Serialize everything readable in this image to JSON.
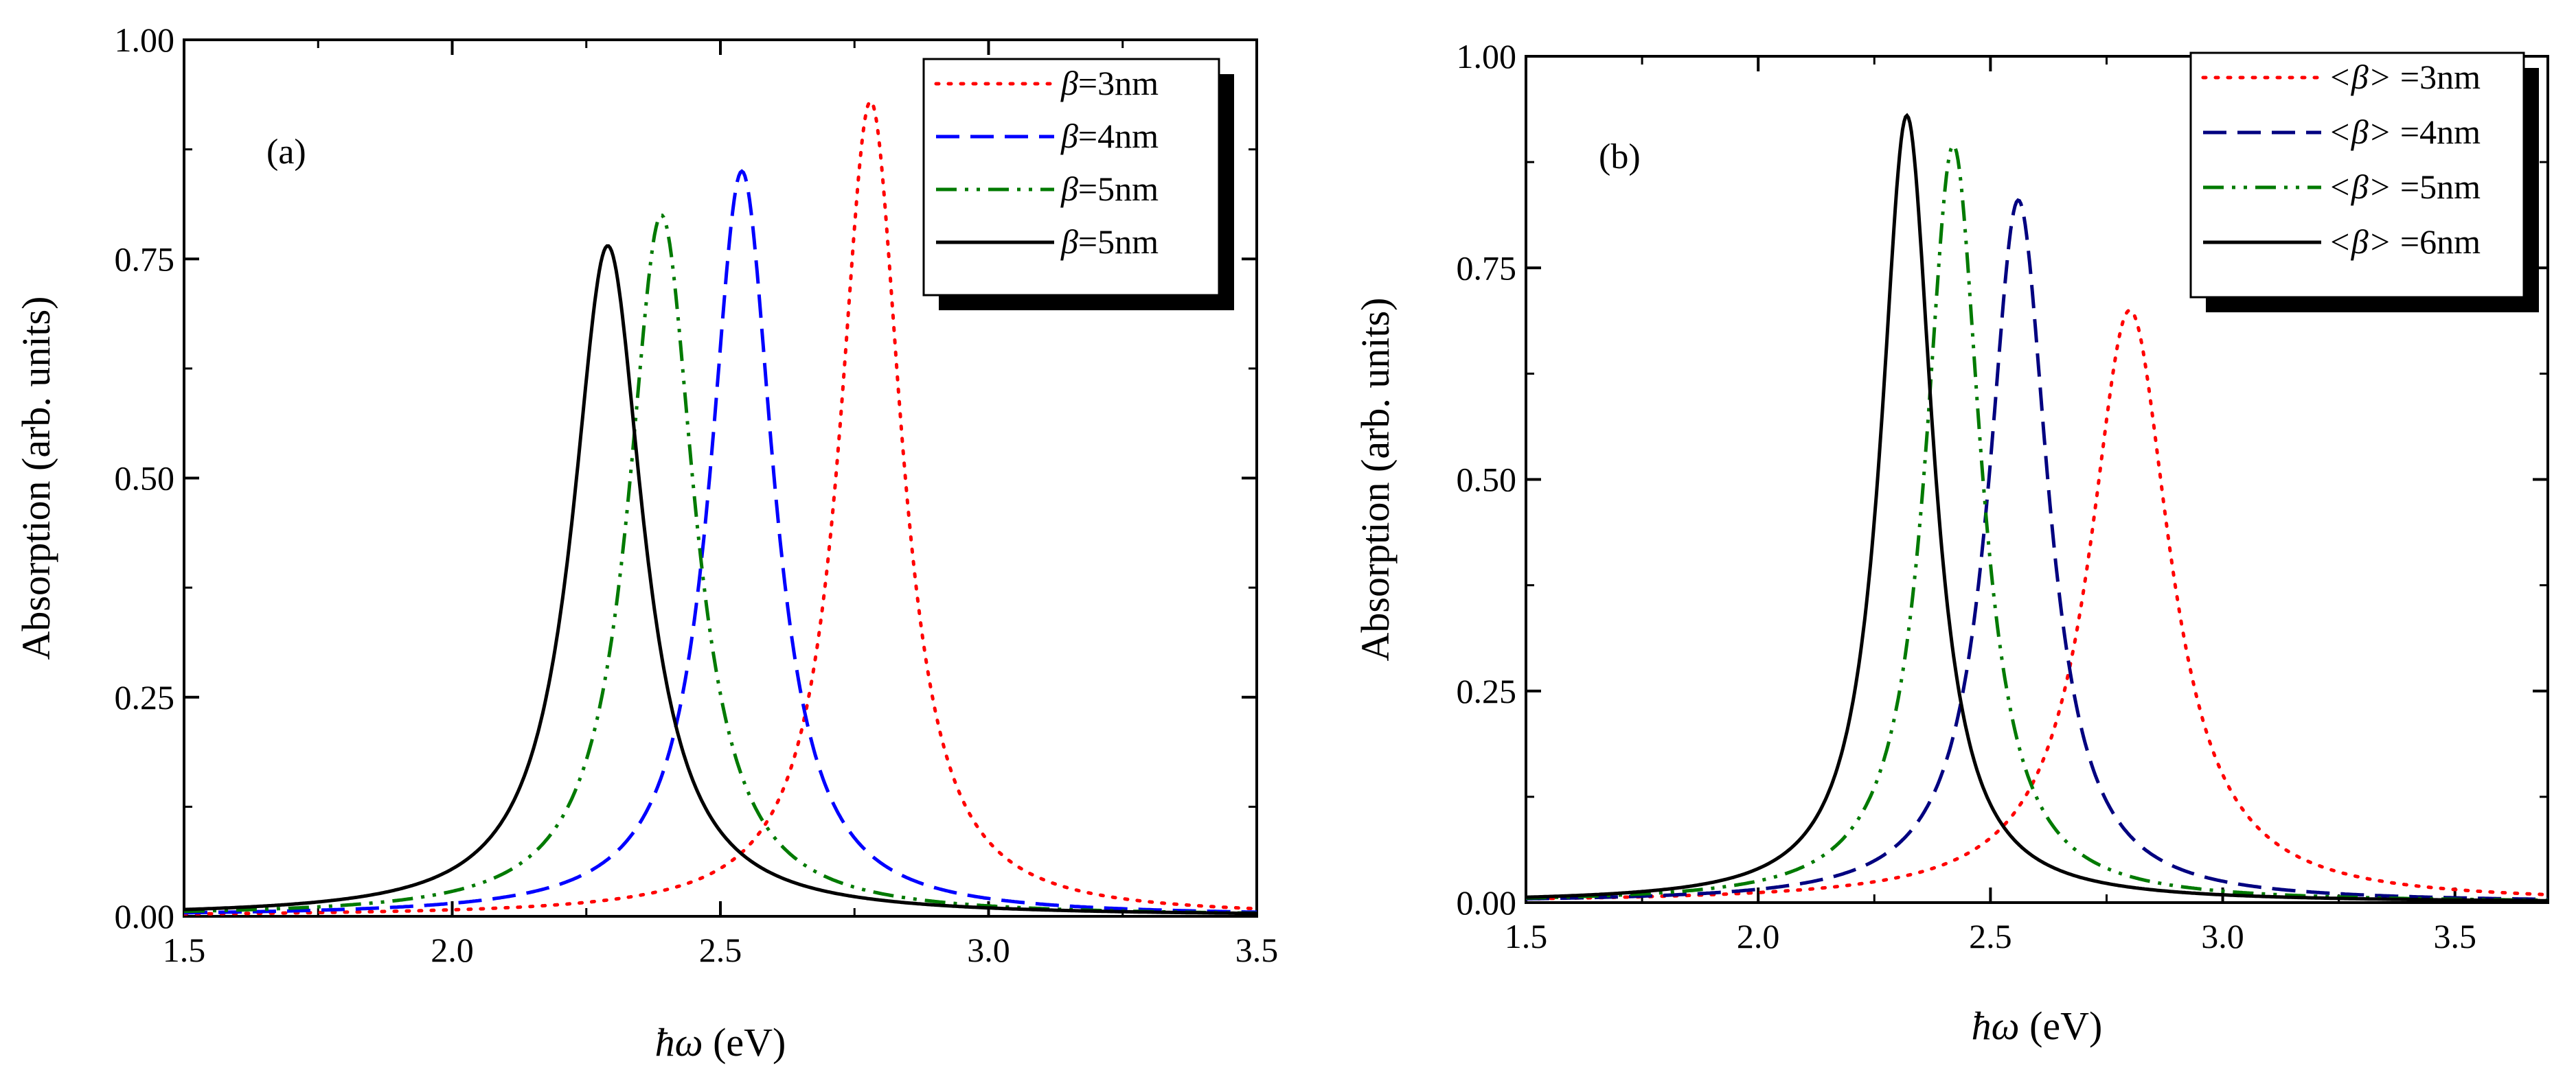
{
  "chart_data": [
    {
      "id": "a",
      "type": "line",
      "panel_label": "(a)",
      "xlabel": {
        "symbol": "ħω",
        "unit": "(eV)"
      },
      "ylabel": "Absorption (arb. units)",
      "xlim": [
        1.5,
        3.5
      ],
      "ylim": [
        0,
        1
      ],
      "xticks": [
        1.5,
        2.0,
        2.5,
        3.0,
        3.5
      ],
      "xtick_labels": [
        "1.5",
        "2.0",
        "2.5",
        "3.0",
        "3.5"
      ],
      "yticks": [
        0,
        0.25,
        0.5,
        0.75,
        1.0
      ],
      "ytick_labels": [
        "0.00",
        "0.25",
        "0.50",
        "0.75",
        "1.00"
      ],
      "legend_position": "top-right",
      "series": [
        {
          "name": "β=3nm",
          "symbol": "β",
          "suffix": "=3nm",
          "color": "#ff0000",
          "dash": "dot",
          "peak_x": 2.78,
          "peak_y": 0.93,
          "width": 0.07
        },
        {
          "name": "β=4nm",
          "symbol": "β",
          "suffix": "=4nm",
          "color": "#0000ff",
          "dash": "dash",
          "peak_x": 2.54,
          "peak_y": 0.85,
          "width": 0.072
        },
        {
          "name": "β=5nm",
          "symbol": "β",
          "suffix": "=5nm",
          "color": "#007a00",
          "dash": "dashdotdot",
          "peak_x": 2.39,
          "peak_y": 0.8,
          "width": 0.075
        },
        {
          "name": "β=5nm",
          "symbol": "β",
          "suffix": "=5nm",
          "color": "#000000",
          "dash": "solid",
          "peak_x": 2.29,
          "peak_y": 0.765,
          "width": 0.08
        }
      ]
    },
    {
      "id": "b",
      "type": "line",
      "panel_label": "(b)",
      "xlabel": {
        "symbol": "ħω",
        "unit": "(eV)"
      },
      "ylabel": "Absorption (arb. units)",
      "xlim": [
        1.5,
        3.7
      ],
      "ylim": [
        0,
        1
      ],
      "xticks": [
        1.5,
        2.0,
        2.5,
        3.0,
        3.5
      ],
      "xtick_labels": [
        "1.5",
        "2.0",
        "2.5",
        "3.0",
        "3.5"
      ],
      "yticks": [
        0,
        0.25,
        0.5,
        0.75,
        1.0
      ],
      "ytick_labels": [
        "0.00",
        "0.25",
        "0.50",
        "0.75",
        "1.00"
      ],
      "legend_position": "top-right",
      "series": [
        {
          "name": "<β> =3nm",
          "symbol": "<β>",
          "suffix": " =3nm",
          "color": "#ff0000",
          "dash": "dot",
          "peak_x": 2.8,
          "peak_y": 0.7,
          "width": 0.105
        },
        {
          "name": "<β> =4nm",
          "symbol": "<β>",
          "suffix": " =4nm",
          "color": "#000080",
          "dash": "dash",
          "peak_x": 2.56,
          "peak_y": 0.83,
          "width": 0.078
        },
        {
          "name": "<β> =5nm",
          "symbol": "<β>",
          "suffix": " =5nm",
          "color": "#007a00",
          "dash": "dashdotdot",
          "peak_x": 2.42,
          "peak_y": 0.895,
          "width": 0.072
        },
        {
          "name": "<β> =6nm",
          "symbol": "<β>",
          "suffix": " =6nm",
          "color": "#000000",
          "dash": "solid",
          "peak_x": 2.32,
          "peak_y": 0.93,
          "width": 0.068
        }
      ]
    }
  ]
}
